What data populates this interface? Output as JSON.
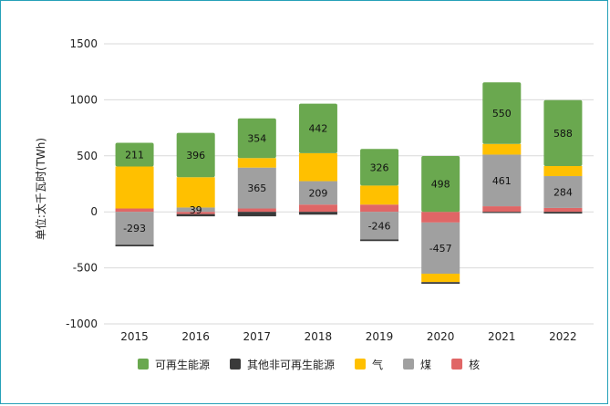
{
  "chart_data": {
    "type": "bar",
    "stacked": true,
    "ylabel": "单位:太千瓦时(TWh)",
    "ylim": [
      -1000,
      1500
    ],
    "yticks": [
      1500,
      1000,
      500,
      0,
      -500,
      -1000
    ],
    "grid": true,
    "legend_position": "bottom",
    "categories": [
      "2015",
      "2016",
      "2017",
      "2018",
      "2019",
      "2020",
      "2021",
      "2022"
    ],
    "series": [
      {
        "name": "核",
        "color": "#e06666",
        "values": [
          30,
          -20,
          30,
          65,
          65,
          -95,
          50,
          35
        ]
      },
      {
        "name": "煤",
        "color": "#a0a0a0",
        "values": [
          -293,
          39,
          365,
          209,
          -246,
          -457,
          461,
          284
        ]
      },
      {
        "name": "气",
        "color": "#ffc000",
        "values": [
          375,
          270,
          85,
          250,
          170,
          -75,
          95,
          90
        ]
      },
      {
        "name": "可再生能源",
        "color": "#6aa84f",
        "values": [
          211,
          396,
          354,
          442,
          326,
          498,
          550,
          588
        ]
      },
      {
        "name": "其他非可再生能源",
        "color": "#3a3a3a",
        "values": [
          -15,
          -20,
          -40,
          -25,
          -15,
          -15,
          -10,
          -15
        ]
      }
    ],
    "data_labels": [
      {
        "category": "2015",
        "series": "可再生能源",
        "text": "211"
      },
      {
        "category": "2015",
        "series": "煤",
        "text": "-293"
      },
      {
        "category": "2016",
        "series": "可再生能源",
        "text": "396"
      },
      {
        "category": "2016",
        "series": "煤",
        "text": "39"
      },
      {
        "category": "2017",
        "series": "可再生能源",
        "text": "354"
      },
      {
        "category": "2017",
        "series": "煤",
        "text": "365"
      },
      {
        "category": "2018",
        "series": "可再生能源",
        "text": "442"
      },
      {
        "category": "2018",
        "series": "煤",
        "text": "209"
      },
      {
        "category": "2019",
        "series": "可再生能源",
        "text": "326"
      },
      {
        "category": "2019",
        "series": "煤",
        "text": "-246"
      },
      {
        "category": "2020",
        "series": "可再生能源",
        "text": "498"
      },
      {
        "category": "2020",
        "series": "煤",
        "text": "-457"
      },
      {
        "category": "2021",
        "series": "可再生能源",
        "text": "550"
      },
      {
        "category": "2021",
        "series": "煤",
        "text": "461"
      },
      {
        "category": "2022",
        "series": "可再生能源",
        "text": "588"
      },
      {
        "category": "2022",
        "series": "煤",
        "text": "284"
      }
    ],
    "legend_order": [
      "可再生能源",
      "其他非可再生能源",
      "气",
      "煤",
      "核"
    ]
  }
}
